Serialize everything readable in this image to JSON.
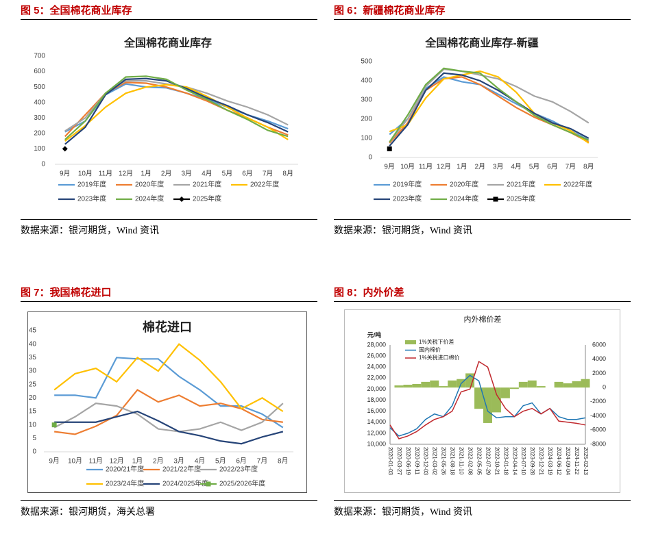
{
  "figures": [
    {
      "caption": "图 5：全国棉花商业库存",
      "source": "数据来源：银河期货，Wind 资讯"
    },
    {
      "caption": "图 6：新疆棉花商业库存",
      "source": "数据来源：银河期货，Wind 资讯"
    },
    {
      "caption": "图 7：我国棉花进口",
      "source": "数据来源：银河期货，海关总署"
    },
    {
      "caption": "图 8：内外价差",
      "source": "数据来源：银河期货，Wind 资讯"
    }
  ],
  "chart_data": [
    {
      "type": "line",
      "title": "全国棉花商业库存",
      "categories": [
        "9月",
        "10月",
        "11月",
        "12月",
        "1月",
        "2月",
        "3月",
        "4月",
        "5月",
        "6月",
        "7月",
        "8月"
      ],
      "ylim": [
        0,
        700
      ],
      "yticks": [
        0,
        100,
        200,
        300,
        400,
        500,
        600,
        700
      ],
      "series": [
        {
          "name": "2019年度",
          "color": "#5b9bd5",
          "values": [
            210,
            280,
            450,
            520,
            500,
            495,
            460,
            420,
            370,
            320,
            280,
            230
          ]
        },
        {
          "name": "2020年度",
          "color": "#ed7d31",
          "values": [
            180,
            320,
            460,
            530,
            525,
            500,
            460,
            410,
            350,
            300,
            240,
            190
          ]
        },
        {
          "name": "2021年度",
          "color": "#a5a5a5",
          "values": [
            215,
            300,
            460,
            540,
            540,
            520,
            500,
            460,
            410,
            370,
            320,
            255
          ]
        },
        {
          "name": "2022年度",
          "color": "#ffc000",
          "values": [
            150,
            250,
            370,
            460,
            500,
            515,
            500,
            440,
            370,
            300,
            240,
            160
          ]
        },
        {
          "name": "2023年度",
          "color": "#264478",
          "values": [
            130,
            240,
            450,
            550,
            555,
            540,
            490,
            430,
            380,
            320,
            270,
            210
          ]
        },
        {
          "name": "2024年度",
          "color": "#70ad47",
          "values": [
            160,
            280,
            460,
            565,
            570,
            550,
            480,
            420,
            350,
            290,
            220,
            180
          ]
        },
        {
          "name": "2025年度",
          "color": "#000000",
          "marker": "diamond",
          "values": [
            100,
            null,
            null,
            null,
            null,
            null,
            null,
            null,
            null,
            null,
            null,
            null
          ]
        }
      ]
    },
    {
      "type": "line",
      "title": "全国棉花商业库存-新疆",
      "categories": [
        "9月",
        "10月",
        "11月",
        "12月",
        "1月",
        "2月",
        "3月",
        "4月",
        "5月",
        "6月",
        "7月",
        "8月"
      ],
      "ylim": [
        0,
        500
      ],
      "yticks": [
        0,
        100,
        200,
        300,
        400,
        500
      ],
      "series": [
        {
          "name": "2019年度",
          "color": "#5b9bd5",
          "values": [
            120,
            200,
            360,
            420,
            395,
            380,
            330,
            280,
            230,
            190,
            140,
            90
          ]
        },
        {
          "name": "2020年度",
          "color": "#ed7d31",
          "values": [
            75,
            180,
            350,
            410,
            420,
            380,
            320,
            260,
            210,
            170,
            130,
            80
          ]
        },
        {
          "name": "2021年度",
          "color": "#a5a5a5",
          "values": [
            80,
            200,
            370,
            460,
            450,
            430,
            410,
            370,
            320,
            290,
            240,
            180
          ]
        },
        {
          "name": "2022年度",
          "color": "#ffc000",
          "values": [
            135,
            170,
            310,
            410,
            430,
            450,
            420,
            340,
            230,
            180,
            140,
            75
          ]
        },
        {
          "name": "2023年度",
          "color": "#264478",
          "values": [
            60,
            170,
            350,
            440,
            430,
            400,
            350,
            290,
            230,
            180,
            150,
            100
          ]
        },
        {
          "name": "2024年度",
          "color": "#70ad47",
          "values": [
            80,
            220,
            380,
            465,
            450,
            440,
            360,
            290,
            220,
            170,
            130,
            90
          ]
        },
        {
          "name": "2025年度",
          "color": "#000000",
          "marker": "square",
          "values": [
            45,
            null,
            null,
            null,
            null,
            null,
            null,
            null,
            null,
            null,
            null,
            null
          ]
        }
      ]
    },
    {
      "type": "line",
      "title": "棉花进口",
      "categories": [
        "9月",
        "10月",
        "11月",
        "12月",
        "1月",
        "2月",
        "3月",
        "4月",
        "5月",
        "6月",
        "7月",
        "8月"
      ],
      "ylim": [
        0,
        45
      ],
      "yticks": [
        0,
        5,
        10,
        15,
        20,
        25,
        30,
        35,
        40,
        45
      ],
      "series": [
        {
          "name": "2020/21年度",
          "color": "#5b9bd5",
          "values": [
            21,
            21,
            20,
            35,
            34.5,
            34.5,
            28,
            23,
            17,
            17,
            14,
            9
          ]
        },
        {
          "name": "2021/22年度",
          "color": "#ed7d31",
          "values": [
            7.5,
            6.5,
            9.5,
            13.5,
            23,
            18.5,
            21,
            17,
            18,
            16,
            12,
            11
          ]
        },
        {
          "name": "2022/23年度",
          "color": "#a5a5a5",
          "values": [
            9,
            13,
            18,
            17,
            14,
            8.5,
            7.5,
            8.5,
            11,
            8,
            11,
            18
          ]
        },
        {
          "name": "2023/24年度",
          "color": "#ffc000",
          "values": [
            23,
            29,
            31,
            26,
            35,
            30,
            40,
            34,
            26,
            16,
            20,
            15
          ]
        },
        {
          "name": "2024/2025年度",
          "color": "#264478",
          "values": [
            11,
            11,
            11,
            13,
            15,
            11.5,
            7.5,
            6,
            4,
            3,
            5.5,
            7.5
          ]
        },
        {
          "name": "2025/2026年度",
          "color": "#70ad47",
          "marker": "square",
          "values": [
            10,
            null,
            null,
            null,
            null,
            null,
            null,
            null,
            null,
            null,
            null,
            null
          ]
        }
      ]
    },
    {
      "type": "combo",
      "title": "内外棉价差",
      "y_label": "元/吨",
      "categories": [
        "2020-01-03",
        "2020-03-27",
        "2020-06-19",
        "2020-09-11",
        "2020-12-03",
        "2021-03-02",
        "2021-05-26",
        "2021-08-18",
        "2021-11-10",
        "2022-02-08",
        "2022-05-05",
        "2022-07-29",
        "2022-10-21",
        "2023-01-18",
        "2023-04-14",
        "2023-07-10",
        "2023-09-28",
        "2023-12-21",
        "2024-03-19",
        "2024-06-12",
        "2024-09-04",
        "2024-11-22",
        "2025-02-13"
      ],
      "ylim": [
        10000,
        28000
      ],
      "yticks": [
        {
          "value": 10000,
          "label": "10,000"
        },
        {
          "value": 12000,
          "label": "12,000"
        },
        {
          "value": 14000,
          "label": "14,000"
        },
        {
          "value": 16000,
          "label": "16,000"
        },
        {
          "value": 18000,
          "label": "18,000"
        },
        {
          "value": 20000,
          "label": "20,000"
        },
        {
          "value": 22000,
          "label": "22,000"
        },
        {
          "value": 24000,
          "label": "24,000"
        },
        {
          "value": 26000,
          "label": "26,000"
        },
        {
          "value": 28000,
          "label": "28,000"
        }
      ],
      "y2lim": [
        -8000,
        6000
      ],
      "y2ticks": [
        -8000,
        -6000,
        -4000,
        -2000,
        0,
        2000,
        4000,
        6000
      ],
      "series": [
        {
          "name": "1%关税下价差",
          "color": "#9bbb59",
          "axis": "y2",
          "mark": "bar",
          "values": [
            0,
            300,
            400,
            500,
            800,
            1000,
            200,
            1000,
            1200,
            2000,
            -3000,
            -5000,
            -3500,
            -1500,
            -200,
            800,
            1000,
            200,
            0,
            800,
            600,
            900,
            1200
          ]
        },
        {
          "name": "国内棉价",
          "color": "#1f77b4",
          "values": [
            13000,
            11500,
            12000,
            12800,
            14500,
            15500,
            15000,
            17000,
            21000,
            22500,
            21500,
            16000,
            14800,
            15000,
            15000,
            17000,
            17500,
            15500,
            16500,
            15000,
            14500,
            14500,
            14800
          ]
        },
        {
          "name": "1%关税进口棉价",
          "color": "#c0282d",
          "values": [
            13500,
            11000,
            11500,
            12300,
            13500,
            14500,
            15000,
            16000,
            19500,
            20000,
            25000,
            24000,
            19000,
            16500,
            15000,
            16000,
            16500,
            15500,
            16500,
            14200,
            14000,
            13800,
            13500
          ]
        }
      ]
    }
  ]
}
